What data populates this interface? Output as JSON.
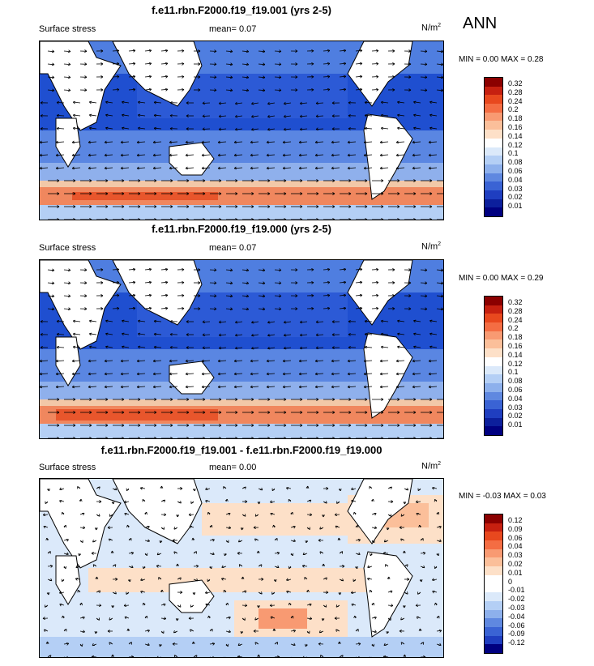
{
  "season": "ANN",
  "panels": [
    {
      "title": "f.e11.rbn.F2000.f19_f19.001 (yrs 2-5)",
      "field": "Surface stress",
      "mean": "mean=   0.07",
      "units": "N/m",
      "units_sup": "2",
      "minmax": "MIN =   0.00  MAX =   0.28",
      "colorbar": {
        "labels": [
          "0.32",
          "0.28",
          "0.24",
          "0.2",
          "0.18",
          "0.16",
          "0.14",
          "0.12",
          "0.1",
          "0.08",
          "0.06",
          "0.04",
          "0.03",
          "0.02",
          "0.01"
        ],
        "colors": [
          "#8b0000",
          "#c62010",
          "#e8481e",
          "#f46d43",
          "#f89a72",
          "#fbbf9a",
          "#fde0c8",
          "#ffffff",
          "#dbe9fa",
          "#b4cff5",
          "#8db0ec",
          "#5f88e0",
          "#3a63d4",
          "#1f3ec0",
          "#0c1f9c",
          "#000080"
        ]
      }
    },
    {
      "title": "f.e11.rbn.F2000.f19_f19.000 (yrs 2-5)",
      "field": "Surface stress",
      "mean": "mean=   0.07",
      "units": "N/m",
      "units_sup": "2",
      "minmax": "MIN =   0.00  MAX =   0.29",
      "colorbar": {
        "labels": [
          "0.32",
          "0.28",
          "0.24",
          "0.2",
          "0.18",
          "0.16",
          "0.14",
          "0.12",
          "0.1",
          "0.08",
          "0.06",
          "0.04",
          "0.03",
          "0.02",
          "0.01"
        ],
        "colors": [
          "#8b0000",
          "#c62010",
          "#e8481e",
          "#f46d43",
          "#f89a72",
          "#fbbf9a",
          "#fde0c8",
          "#ffffff",
          "#dbe9fa",
          "#b4cff5",
          "#8db0ec",
          "#5f88e0",
          "#3a63d4",
          "#1f3ec0",
          "#0c1f9c",
          "#000080"
        ]
      }
    },
    {
      "title": "f.e11.rbn.F2000.f19_f19.001 - f.e11.rbn.F2000.f19_f19.000",
      "field": "Surface stress",
      "mean": "mean=   0.00",
      "units": "N/m",
      "units_sup": "2",
      "minmax": "MIN =  -0.03  MAX =   0.03",
      "colorbar": {
        "labels": [
          "0.12",
          "0.09",
          "0.06",
          "0.04",
          "0.03",
          "0.02",
          "0.01",
          "0",
          "-0.01",
          "-0.02",
          "-0.03",
          "-0.04",
          "-0.06",
          "-0.09",
          "-0.12"
        ],
        "colors": [
          "#8b0000",
          "#c62010",
          "#e8481e",
          "#f46d43",
          "#f89a72",
          "#fbbf9a",
          "#fde0c8",
          "#ffffff",
          "#ffffff",
          "#dbe9fa",
          "#b4cff5",
          "#8db0ec",
          "#5f88e0",
          "#3a63d4",
          "#1f3ec0",
          "#000080"
        ]
      }
    }
  ]
}
